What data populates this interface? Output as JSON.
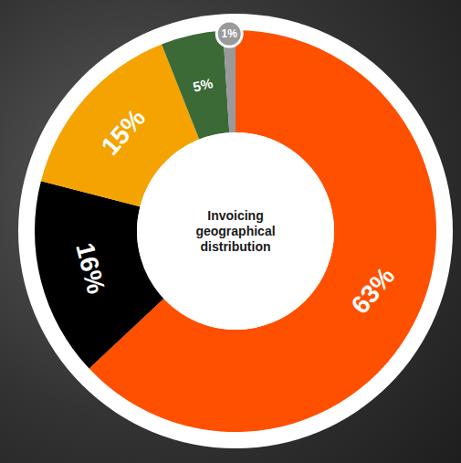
{
  "chart_data": {
    "type": "pie",
    "title": "Invoicing geographical distribution",
    "values": [
      63,
      16,
      15,
      5,
      1
    ],
    "value_labels": [
      "63%",
      "16%",
      "15%",
      "5%",
      "1%"
    ],
    "colors": [
      "#ff5000",
      "#000000",
      "#f5a300",
      "#3b6a37",
      "#9a9a9a"
    ],
    "data_labels": true
  }
}
